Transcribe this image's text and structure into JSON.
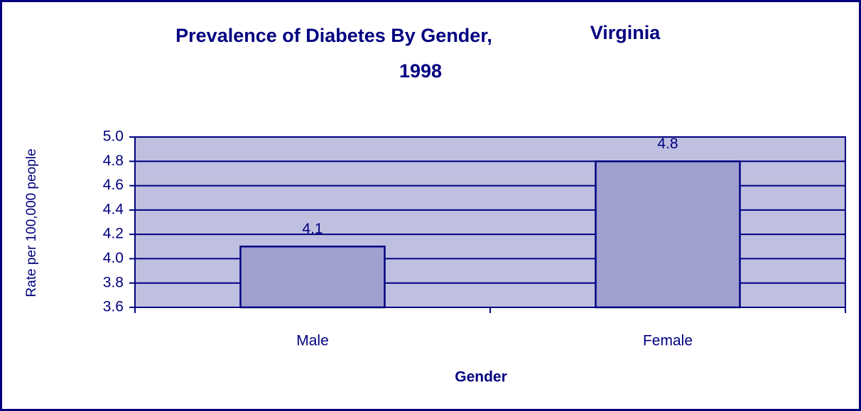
{
  "chart_data": {
    "type": "bar",
    "title": [
      "Prevalence of Diabetes By Gender,",
      "Virginia",
      "1998"
    ],
    "x_label": "Gender",
    "y_label": "Rate per 100,000 people",
    "categories": [
      "Male",
      "Female"
    ],
    "values": [
      4.1,
      4.8
    ],
    "color": "#a0a0d0",
    "plot_background": "#bfbfe0",
    "line_color": "#000080",
    "ylim": [
      3.6,
      5.0
    ],
    "yticks": [
      3.6,
      3.8,
      {
        "value": 4.0,
        "label": "4.0"
      },
      4.2,
      4.4,
      4.6,
      4.8,
      {
        "value": 5.0,
        "label": "5.0"
      }
    ],
    "grid": true
  }
}
